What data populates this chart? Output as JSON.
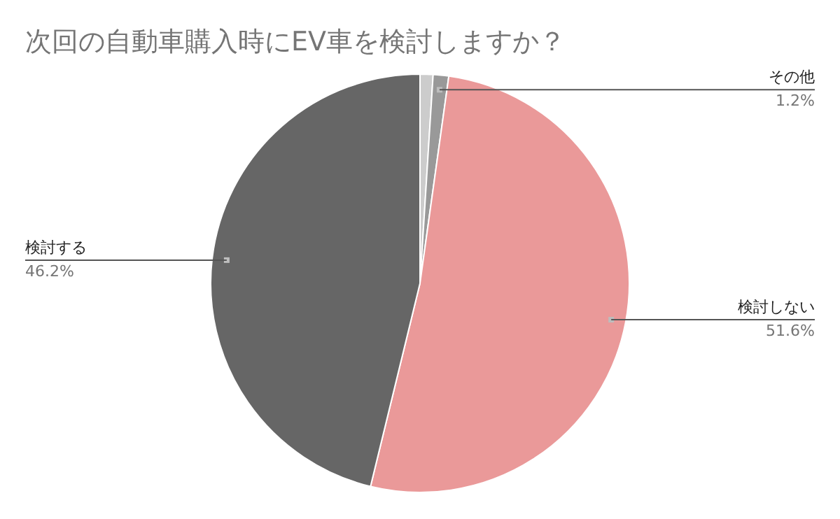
{
  "chart_data": {
    "type": "pie",
    "title": "次回の自動車購入時にEV車を検討しますか？",
    "categories": [
      null,
      "その他",
      "検討しない",
      "検討する"
    ],
    "values": [
      1.0,
      1.2,
      51.6,
      46.2
    ],
    "colors": [
      "#cccccc",
      "#999999",
      "#ea9999",
      "#666666"
    ],
    "value_labels": [
      null,
      "1.2%",
      "51.6%",
      "46.2%"
    ],
    "legend": false
  }
}
